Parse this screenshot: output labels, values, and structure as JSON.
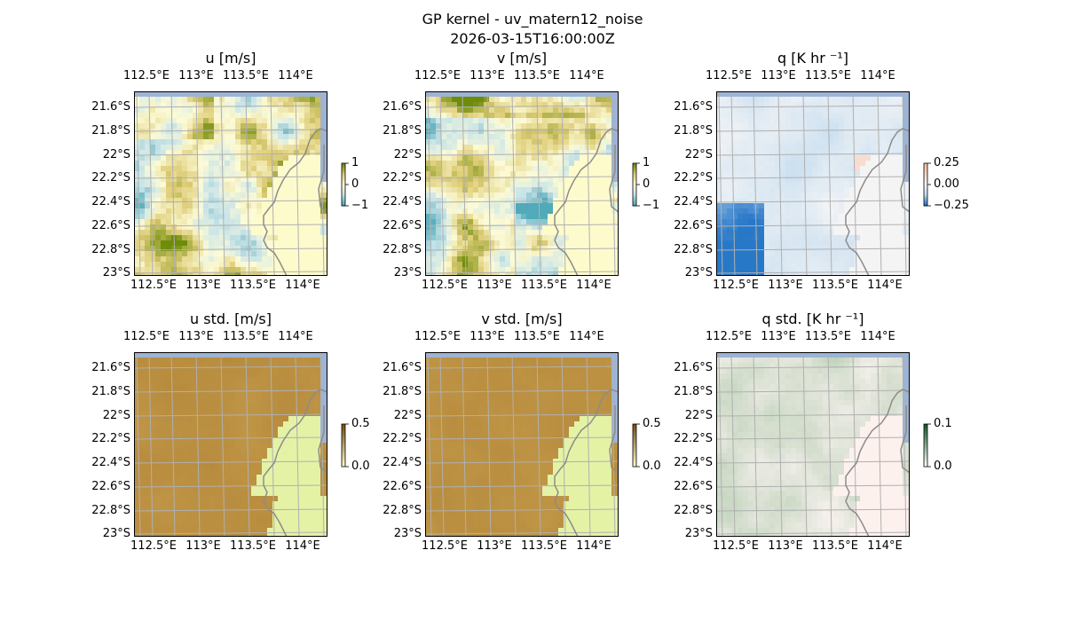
{
  "figure": {
    "title_line1": "GP kernel - uv_matern12_noise",
    "title_line2": "2026-03-15T16:00:00Z"
  },
  "lon_ticks": [
    "112.5°E",
    "113°E",
    "113.5°E",
    "114°E"
  ],
  "lat_ticks": [
    "21.6°S",
    "21.8°S",
    "22°S",
    "22.2°S",
    "22.4°S",
    "22.6°S",
    "22.8°S",
    "23°S"
  ],
  "panels": [
    {
      "key": "u",
      "title": "u [m/s]",
      "colormap": "BrBG-style",
      "field": "u",
      "cbar_ticks": [
        "1",
        "0",
        "−1"
      ]
    },
    {
      "key": "v",
      "title": "v [m/s]",
      "colormap": "BrBG-style",
      "field": "v",
      "cbar_ticks": [
        "1",
        "0",
        "−1"
      ]
    },
    {
      "key": "q",
      "title": "q [K hr ⁻¹]",
      "colormap": "RdBu-style",
      "field": "q",
      "cbar_ticks": [
        "0.25",
        "0.00",
        "−0.25"
      ]
    },
    {
      "key": "ustd",
      "title": "u std. [m/s]",
      "colormap": "std-brown",
      "field": "ustd",
      "cbar_ticks": [
        "0.5",
        "0.0"
      ]
    },
    {
      "key": "vstd",
      "title": "v std. [m/s]",
      "colormap": "std-brown",
      "field": "vstd",
      "cbar_ticks": [
        "0.5",
        "0.0"
      ]
    },
    {
      "key": "qstd",
      "title": "q std. [K hr ⁻¹]",
      "colormap": "std-green",
      "field": "qstd",
      "cbar_ticks": [
        "0.1",
        "0.0"
      ]
    }
  ],
  "colors": {
    "ocean": "#9db4d6",
    "land_brbg": "#fdfbcc",
    "land_std": "#e4f2a6",
    "land_qstd": "#fdf1ee",
    "coast": "#8c8c8c",
    "grid": "#b0b0b0"
  }
}
